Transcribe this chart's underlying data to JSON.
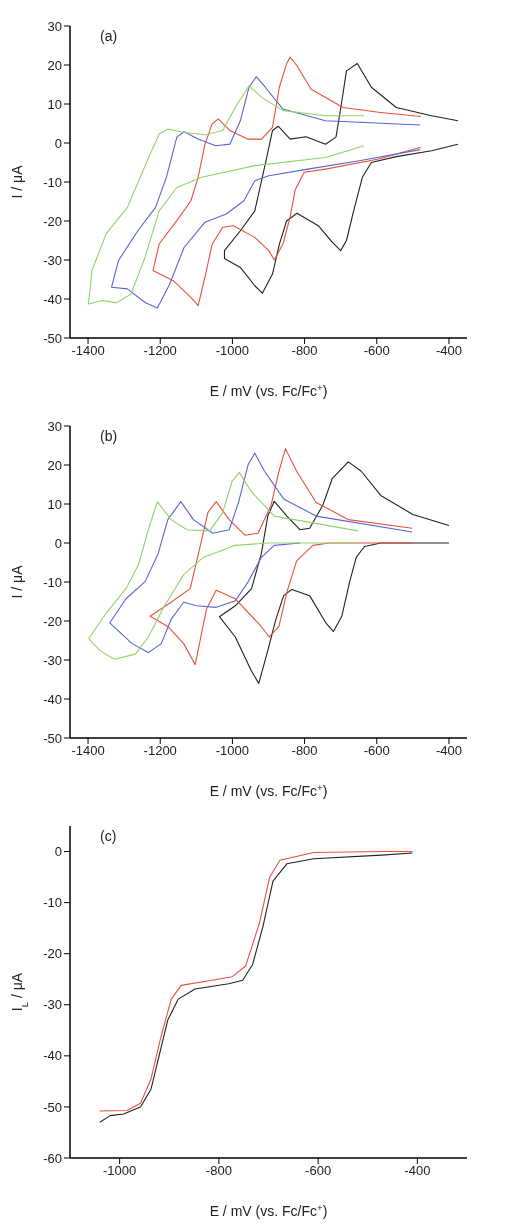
{
  "chart_data": [
    {
      "type": "line",
      "xlabel": "E / mV (vs. Fc/Fc$^{+}$)",
      "ylabel": "I / μA",
      "annotations": [
        "(a)"
      ],
      "xlim": [
        -1450,
        -350
      ],
      "xticks": [
        -1400,
        -1200,
        -1000,
        -800,
        -600,
        -400
      ],
      "ylim": [
        -50,
        30
      ],
      "yticks": [
        -50,
        -40,
        -30,
        -20,
        -10,
        0,
        10,
        20,
        30
      ],
      "series": [
        {
          "color": "#222222",
          "x": [
            -375,
            -448,
            -546,
            -615,
            -640,
            -664,
            -684,
            -700,
            -723,
            -762,
            -821,
            -850,
            -870,
            -889,
            -917,
            -938,
            -978,
            -1022,
            -1022,
            -978,
            -938,
            -909,
            -889,
            -873,
            -840,
            -796,
            -742,
            -713,
            -698,
            -684,
            -654,
            -615,
            -546,
            -448,
            -375
          ],
          "values": [
            -0.3,
            -2,
            -3.5,
            -5,
            -8.8,
            -17.4,
            -25,
            -27.6,
            -25.5,
            -21.2,
            -18,
            -20,
            -26,
            -33.6,
            -38.5,
            -36.6,
            -31.9,
            -29.6,
            -27.6,
            -22.5,
            -17.4,
            -5.4,
            3.2,
            4.3,
            1,
            1.6,
            -0.3,
            1.5,
            10,
            18.5,
            20.4,
            14.3,
            9.1,
            7,
            5.7
          ]
        },
        {
          "color": "#e8503a",
          "x": [
            -478,
            -595,
            -742,
            -801,
            -826,
            -840,
            -860,
            -884,
            -899,
            -938,
            -997,
            -1027,
            -1056,
            -1076,
            -1095,
            -1115,
            -1164,
            -1220,
            -1203,
            -1154,
            -1115,
            -1095,
            -1076,
            -1056,
            -1039,
            -1007,
            -958,
            -919,
            -889,
            -870,
            -850,
            -840,
            -821,
            -782,
            -693,
            -595,
            -478
          ],
          "values": [
            -1.1,
            -4.1,
            -6.7,
            -7.5,
            -12,
            -19,
            -25.9,
            -30,
            -27.6,
            -24.2,
            -21.2,
            -21.6,
            -25.9,
            -34.4,
            -41.7,
            -39.6,
            -35.3,
            -32.7,
            -25.9,
            -19.9,
            -14.8,
            -8.8,
            -0.3,
            4.9,
            6.2,
            3.2,
            1,
            1,
            4,
            14.3,
            20.3,
            22,
            19.8,
            13.8,
            9.1,
            7.9,
            6.8
          ]
        },
        {
          "color": "#5a63d6",
          "x": [
            -480,
            -644,
            -791,
            -899,
            -938,
            -968,
            -1017,
            -1076,
            -1134,
            -1174,
            -1208,
            -1242,
            -1291,
            -1335,
            -1316,
            -1262,
            -1213,
            -1183,
            -1154,
            -1134,
            -1095,
            -1046,
            -1007,
            -978,
            -954,
            -934,
            -909,
            -860,
            -742,
            -480
          ],
          "values": [
            -1.7,
            -4.5,
            -6.7,
            -8.4,
            -9.7,
            -14.8,
            -18.2,
            -20.3,
            -26.8,
            -36.2,
            -42.3,
            -40.9,
            -37.4,
            -37,
            -30.2,
            -22.5,
            -16.5,
            -8.8,
            1.5,
            2.9,
            1,
            -0.7,
            -0.3,
            5.7,
            14.3,
            17,
            14.3,
            8.7,
            5.7,
            4.6
          ]
        },
        {
          "color": "#8fd46a",
          "x": [
            -635,
            -742,
            -938,
            -1085,
            -1154,
            -1203,
            -1242,
            -1281,
            -1321,
            -1360,
            -1399,
            -1389,
            -1350,
            -1291,
            -1232,
            -1203,
            -1179,
            -1134,
            -1076,
            -1027,
            -992,
            -954,
            -919,
            -860,
            -742,
            -635
          ],
          "values": [
            -0.7,
            -3.7,
            -5.8,
            -8.8,
            -11.4,
            -17.4,
            -29.3,
            -38.7,
            -41,
            -40.4,
            -41.3,
            -32.7,
            -23.3,
            -16.5,
            -3.7,
            2.3,
            3.6,
            2.7,
            2.1,
            3.2,
            9.1,
            14.7,
            11.7,
            8.3,
            7,
            7
          ]
        }
      ]
    },
    {
      "type": "line",
      "xlabel": "E / mV (vs. Fc/Fc$^{+}$)",
      "ylabel": "I / μA",
      "annotations": [
        "(b)"
      ],
      "xlim": [
        -1450,
        -350
      ],
      "xticks": [
        -1400,
        -1200,
        -1000,
        -800,
        -600,
        -400
      ],
      "ylim": [
        -50,
        30
      ],
      "yticks": [
        -50,
        -40,
        -30,
        -20,
        -10,
        0,
        10,
        20,
        30
      ],
      "series": [
        {
          "color": "#222222",
          "x": [
            -400,
            -589,
            -634,
            -657,
            -675,
            -697,
            -720,
            -741,
            -786,
            -835,
            -858,
            -880,
            -902,
            -927,
            -947,
            -992,
            -1036,
            -992,
            -947,
            -920,
            -902,
            -884,
            -849,
            -813,
            -786,
            -750,
            -723,
            -679,
            -643,
            -589,
            -500,
            -400
          ],
          "values": [
            0,
            0,
            -0.9,
            -3.7,
            -9.9,
            -18.8,
            -22.7,
            -20.5,
            -13.5,
            -11.9,
            -13.5,
            -19.7,
            -27.6,
            -36,
            -32.9,
            -24.1,
            -18.9,
            -16.1,
            -11.7,
            -2.8,
            6.9,
            10.7,
            6.9,
            3.4,
            3.8,
            9.6,
            16.6,
            20.8,
            18.4,
            12.2,
            7.3,
            4.5
          ]
        },
        {
          "color": "#e8503a",
          "x": [
            -502,
            -732,
            -777,
            -822,
            -849,
            -871,
            -898,
            -920,
            -992,
            -1045,
            -1072,
            -1103,
            -1135,
            -1179,
            -1228,
            -1170,
            -1117,
            -1090,
            -1068,
            -1045,
            -1009,
            -965,
            -929,
            -893,
            -871,
            -853,
            -822,
            -768,
            -679,
            -502
          ],
          "values": [
            0,
            0,
            -0.6,
            -4.6,
            -12.6,
            -21.4,
            -24.1,
            -21.4,
            -14.3,
            -12.1,
            -17,
            -31.2,
            -25.8,
            -21.4,
            -18.8,
            -15.2,
            -11.7,
            -1.1,
            7.8,
            10.6,
            6,
            2,
            2.5,
            9.6,
            18.4,
            24.2,
            18.4,
            10.4,
            6,
            3.8
          ]
        },
        {
          "color": "#5a63d6",
          "x": [
            -813,
            -884,
            -920,
            -956,
            -992,
            -1045,
            -1099,
            -1135,
            -1170,
            -1197,
            -1233,
            -1278,
            -1340,
            -1295,
            -1242,
            -1206,
            -1179,
            -1143,
            -1108,
            -1054,
            -1009,
            -983,
            -956,
            -938,
            -911,
            -858,
            -768,
            -502
          ],
          "values": [
            0,
            -0.6,
            -3.7,
            -9.9,
            -14.8,
            -16.5,
            -16.1,
            -15.2,
            -19.6,
            -25.8,
            -28.1,
            -25.8,
            -20.5,
            -14.3,
            -9.9,
            -2.8,
            6,
            10.6,
            6,
            2.5,
            3.4,
            10.4,
            20.2,
            23,
            18.4,
            11.3,
            6.9,
            2.8
          ]
        },
        {
          "color": "#8fd46a",
          "x": [
            -652,
            -902,
            -992,
            -1081,
            -1135,
            -1188,
            -1233,
            -1269,
            -1327,
            -1367,
            -1398,
            -1349,
            -1295,
            -1260,
            -1233,
            -1208,
            -1170,
            -1126,
            -1063,
            -1027,
            -1001,
            -981,
            -947,
            -884,
            -652
          ],
          "values": [
            0,
            0,
            -0.6,
            -3.7,
            -8.1,
            -16.1,
            -24.1,
            -28.5,
            -29.8,
            -27.6,
            -24.5,
            -17.9,
            -11.7,
            -5.5,
            3.4,
            10.6,
            6,
            3.4,
            3.1,
            7.8,
            15.8,
            18.1,
            13.1,
            6.9,
            3.1
          ]
        }
      ]
    },
    {
      "type": "line",
      "xlabel": "E / mV (vs. Fc/Fc$^{+}$)",
      "ylabel": "I$_{L}$ / μA",
      "annotations": [
        "(c)"
      ],
      "xlim": [
        -1100,
        -300
      ],
      "xticks": [
        -1000,
        -800,
        -600,
        -400
      ],
      "ylim": [
        -60,
        5
      ],
      "yticks": [
        -60,
        -50,
        -40,
        -30,
        -20,
        -10,
        0
      ],
      "series": [
        {
          "color": "#222222",
          "x": [
            -1040,
            -1019,
            -992,
            -958,
            -937,
            -920,
            -903,
            -882,
            -848,
            -780,
            -752,
            -732,
            -711,
            -691,
            -663,
            -609,
            -472,
            -410
          ],
          "values": [
            -53,
            -51.7,
            -51.4,
            -50,
            -46.6,
            -39.8,
            -33,
            -28.9,
            -26.9,
            -25.9,
            -25.2,
            -22.1,
            -14.6,
            -5.8,
            -2.4,
            -1.4,
            -0.7,
            -0.3
          ]
        },
        {
          "color": "#e8503a",
          "x": [
            -1040,
            -985,
            -958,
            -937,
            -917,
            -896,
            -876,
            -814,
            -773,
            -746,
            -718,
            -698,
            -677,
            -609,
            -472,
            -410
          ],
          "values": [
            -50.8,
            -50.7,
            -49.3,
            -44.6,
            -36.4,
            -28.9,
            -26.2,
            -25.2,
            -24.5,
            -22.4,
            -13.9,
            -5.1,
            -1.7,
            -0.2,
            0,
            0
          ]
        }
      ]
    }
  ]
}
